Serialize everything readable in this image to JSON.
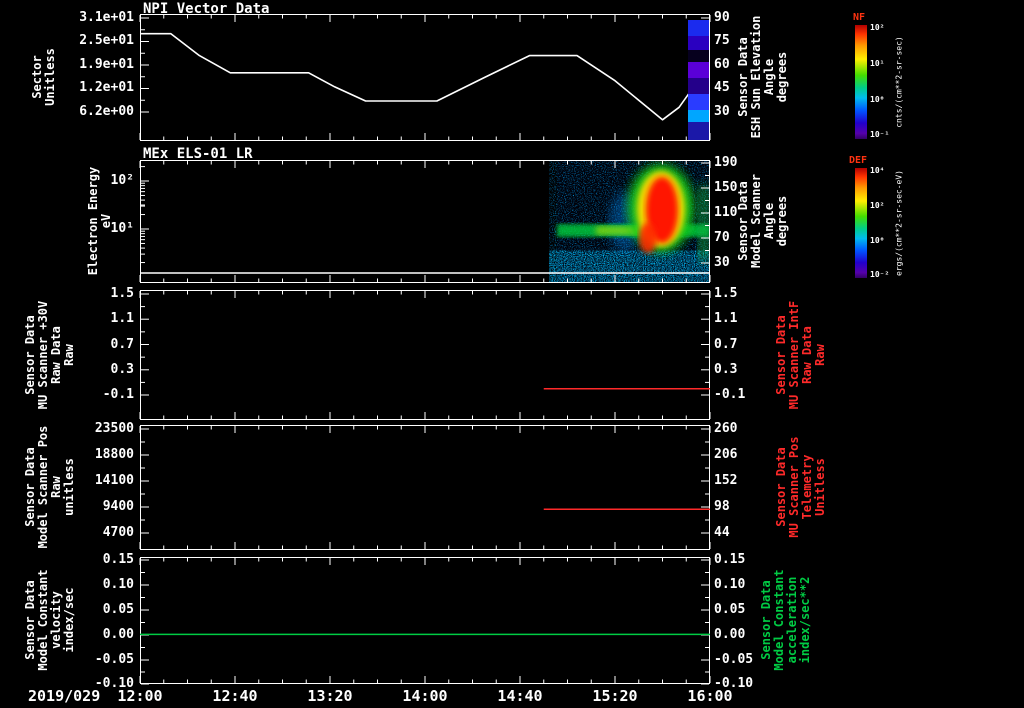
{
  "date_label": "2019/029",
  "x_axis": {
    "ticks": [
      "12:00",
      "12:40",
      "13:20",
      "14:00",
      "14:40",
      "15:20",
      "16:00"
    ]
  },
  "colors": {
    "white_series": "#ffffff",
    "red_series": "#ff2a2a",
    "green_series": "#00cc44",
    "colorbar_title": "#ff3311"
  },
  "panels": [
    {
      "title": "NPI Vector Data",
      "left_axis": {
        "label": "Sector\nUnitless",
        "ticks": [
          "3.1e+01",
          "2.5e+01",
          "1.9e+01",
          "1.2e+01",
          "6.2e+00"
        ]
      },
      "right_axis": {
        "label": "Sensor Data\nESH Sun Elevation\nAngle\ndegrees",
        "ticks": [
          "90",
          "75",
          "60",
          "45",
          "30"
        ]
      }
    },
    {
      "title": "MEx ELS-01 LR",
      "left_axis": {
        "label": "Electron Energy\neV",
        "ticks": [
          "10²",
          "10¹"
        ]
      },
      "right_axis": {
        "label": "Sensor Data\nModel Scanner\nAngle\ndegrees",
        "ticks": [
          "190",
          "150",
          "110",
          "70",
          "30"
        ]
      }
    },
    {
      "left_axis": {
        "label": "Sensor Data\nMU Scanner +30V\nRaw Data\nRaw",
        "ticks": [
          "1.5",
          "1.1",
          "0.7",
          "0.3",
          "-0.1"
        ]
      },
      "right_axis": {
        "label": "Sensor Data\nMU Scanner IntF\nRaw Data\nRaw",
        "ticks": [
          "1.5",
          "1.1",
          "0.7",
          "0.3",
          "-0.1"
        ]
      }
    },
    {
      "left_axis": {
        "label": "Sensor Data\nModel Scanner Pos\nRaw\nunitless",
        "ticks": [
          "23500",
          "18800",
          "14100",
          "9400",
          "4700"
        ]
      },
      "right_axis": {
        "label": "Sensor Data\nMU Scanner Pos\nTelemetry\nUnitless",
        "ticks": [
          "260",
          "206",
          "152",
          "98",
          "44"
        ]
      }
    },
    {
      "left_axis": {
        "label": "Sensor Data\nModel Constant\nvelocity\nindex/sec",
        "ticks": [
          "0.15",
          "0.10",
          "0.05",
          "0.00",
          "-0.05",
          "-0.10"
        ]
      },
      "right_axis": {
        "label": "Sensor Data\nModel Constant\nacceleration\nindex/sec**2",
        "ticks": [
          "0.15",
          "0.10",
          "0.05",
          "0.00",
          "-0.05",
          "-0.10"
        ]
      }
    }
  ],
  "colorbars": [
    {
      "title": "NF",
      "unit": "cnts/(cm**2-sr-sec)",
      "ticks": [
        "10²",
        "10¹",
        "10⁰",
        "10⁻¹"
      ]
    },
    {
      "title": "DEF",
      "unit": "ergs/(cm**2-sr-sec-eV)",
      "ticks": [
        "10⁴",
        "10²",
        "10⁰",
        "10⁻²"
      ]
    }
  ],
  "chart_data": [
    {
      "type": "line",
      "panel": 1,
      "title": "NPI Vector Data",
      "x_range": [
        "12:00",
        "16:00"
      ],
      "left_axis": {
        "label": "Sector (Unitless)",
        "ticks": [
          31,
          24.8,
          18.6,
          12.4,
          6.2
        ]
      },
      "right_axis": {
        "label": "ESH Sun Elevation Angle (degrees)",
        "ticks": [
          90,
          75,
          60,
          45,
          30
        ]
      },
      "series": [
        {
          "name": "ESH Sun Elevation Angle",
          "unit": "degrees",
          "axis": "right",
          "color": "#ffffff",
          "points": [
            [
              "12:00",
              80
            ],
            [
              "12:13",
              80
            ],
            [
              "12:25",
              66
            ],
            [
              "12:38",
              55
            ],
            [
              "13:11",
              55
            ],
            [
              "13:22",
              46
            ],
            [
              "13:35",
              37
            ],
            [
              "14:05",
              37
            ],
            [
              "14:25",
              52
            ],
            [
              "14:44",
              66
            ],
            [
              "15:04",
              66
            ],
            [
              "15:20",
              50
            ],
            [
              "15:40",
              25
            ],
            [
              "15:47",
              33
            ],
            [
              "15:54",
              48
            ]
          ]
        }
      ],
      "right_strip": {
        "x_extent": [
          "15:50",
          "16:00"
        ],
        "segments": [
          {
            "h": 16,
            "color": "#1b2bee"
          },
          {
            "h": 14,
            "color": "#2a00c0"
          },
          {
            "h": 12,
            "color": "#06001e"
          },
          {
            "h": 16,
            "color": "#5a00d8"
          },
          {
            "h": 16,
            "color": "#24008a"
          },
          {
            "h": 16,
            "color": "#2a3cff"
          },
          {
            "h": 12,
            "color": "#00a6ff"
          },
          {
            "h": 18,
            "color": "#1b18a8"
          }
        ]
      }
    },
    {
      "type": "spectrogram",
      "panel": 2,
      "title": "MEx ELS-01 LR",
      "y_axis": "Electron Energy (eV)",
      "y_scale": "log",
      "y_ticks": [
        100,
        10
      ],
      "right_axis": {
        "label": "Model Scanner Angle (degrees)",
        "ticks": [
          190,
          150,
          110,
          70,
          30
        ]
      },
      "colorbar": "DEF ergs/(cm**2-sr-sec-eV)",
      "data_coverage": [
        "14:55",
        "16:00"
      ],
      "features": [
        "sparse blue speckle background over coverage interval",
        "green-cyan horizontal band near 5-8 eV across coverage",
        "intense red enhancement ~15:30-15:50 spanning ~4-100 eV with yellow/green halo",
        "dense blue speckle band at lowest energies",
        "thin white constant trace near 3 eV across the full panel"
      ]
    },
    {
      "type": "line",
      "panel": 3,
      "ylim": [
        -0.5,
        1.5
      ],
      "series": [
        {
          "name": "MU Scanner +30V Raw",
          "color": "#ff2a2a",
          "points": [
            [
              "14:50",
              0.0
            ],
            [
              "16:00",
              0.0
            ]
          ]
        }
      ]
    },
    {
      "type": "line",
      "panel": 4,
      "ylim_left": [
        0,
        23500
      ],
      "right_value_at_line": 96,
      "series": [
        {
          "name": "Model Scanner Pos Raw",
          "color": "#ff2a2a",
          "points": [
            [
              "14:50",
              9000
            ],
            [
              "16:00",
              9000
            ]
          ]
        }
      ]
    },
    {
      "type": "line",
      "panel": 5,
      "ylim": [
        -0.1,
        0.15
      ],
      "series": [
        {
          "name": "Model Constant velocity",
          "color": "#00cc44",
          "points": [
            [
              "12:00",
              0.0
            ],
            [
              "16:00",
              0.0
            ]
          ]
        }
      ]
    }
  ]
}
